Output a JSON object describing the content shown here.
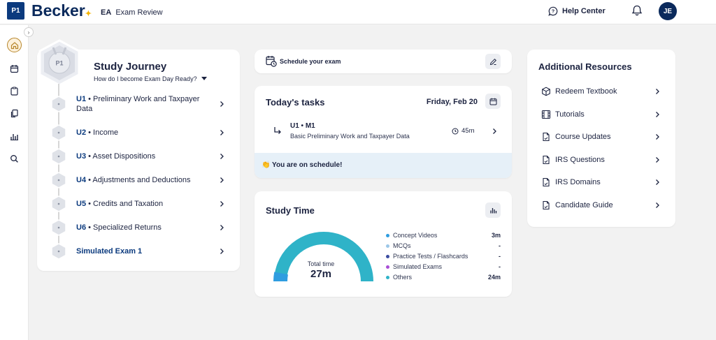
{
  "header": {
    "badge": "P1",
    "brand": "Becker",
    "brand_mark": "✦",
    "product_code": "EA",
    "product_name": "Exam Review",
    "help_label": "Help Center",
    "avatar_initials": "JE"
  },
  "rail": {
    "toggle": "›",
    "items": [
      "home-icon",
      "calendar-icon",
      "clipboard-icon",
      "copy-icon",
      "bar-chart-icon",
      "search-icon"
    ]
  },
  "journey": {
    "badge": "P1",
    "title": "Study Journey",
    "subtitle": "How do I become Exam Day Ready?",
    "units": [
      {
        "code": "U1",
        "sep": " • ",
        "label": "Preliminary Work and Taxpayer Data"
      },
      {
        "code": "U2",
        "sep": " • ",
        "label": "Income"
      },
      {
        "code": "U3",
        "sep": " • ",
        "label": "Asset Dispositions"
      },
      {
        "code": "U4",
        "sep": " • ",
        "label": "Adjustments and Deductions"
      },
      {
        "code": "U5",
        "sep": " • ",
        "label": "Credits and Taxation"
      },
      {
        "code": "U6",
        "sep": " • ",
        "label": "Specialized Returns"
      },
      {
        "code": "Simulated Exam 1",
        "sep": "",
        "label": ""
      }
    ]
  },
  "schedule": {
    "label": "Schedule your exam"
  },
  "tasks": {
    "title": "Today's tasks",
    "date": "Friday, Feb 20",
    "item": {
      "code": "U1 • M1",
      "description": "Basic Preliminary Work and Taxpayer Data",
      "duration": "45m"
    },
    "status": "👏 You are on schedule!"
  },
  "study_time": {
    "title": "Study Time",
    "total_label": "Total time",
    "total_value": "27m",
    "progress_fraction": 0.06,
    "legend": [
      {
        "label": "Concept Videos",
        "value": "3m",
        "color": "#2f9de0"
      },
      {
        "label": "MCQs",
        "value": "-",
        "color": "#9cc7e8"
      },
      {
        "label": "Practice Tests / Flashcards",
        "value": "-",
        "color": "#3b4ca0"
      },
      {
        "label": "Simulated Exams",
        "value": "-",
        "color": "#a94fd6"
      },
      {
        "label": "Others",
        "value": "24m",
        "color": "#2fb3c8"
      }
    ]
  },
  "resources": {
    "title": "Additional Resources",
    "items": [
      {
        "label": "Redeem Textbook",
        "icon": "box-icon"
      },
      {
        "label": "Tutorials",
        "icon": "film-icon"
      },
      {
        "label": "Course Updates",
        "icon": "document-icon"
      },
      {
        "label": "IRS Questions",
        "icon": "document-icon"
      },
      {
        "label": "IRS Domains",
        "icon": "document-icon"
      },
      {
        "label": "Candidate Guide",
        "icon": "document-icon"
      }
    ]
  }
}
